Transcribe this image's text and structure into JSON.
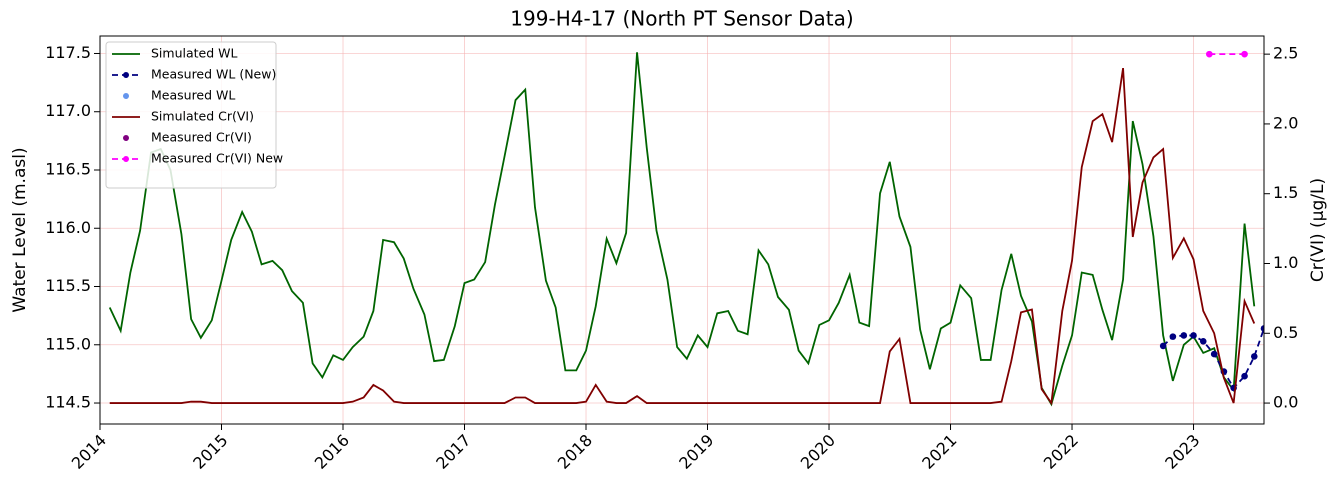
{
  "chart_data": {
    "type": "line",
    "title": "199-H4-17 (North PT Sensor Data)",
    "ylabel": "Water Level (m.asl)",
    "y2label": "Cr(VI) (µg/L)",
    "xlim": [
      2014,
      2023.58
    ],
    "xticks": [
      2014,
      2015,
      2016,
      2017,
      2018,
      2019,
      2020,
      2021,
      2022,
      2023
    ],
    "ylim": [
      114.32,
      117.65
    ],
    "yticks": [
      114.5,
      {
        "value": 115,
        "label": "115.0"
      },
      115.5,
      {
        "value": 116,
        "label": "116.0"
      },
      116.5,
      {
        "value": 117,
        "label": "117.0"
      },
      117.5
    ],
    "y2lim": [
      -0.15,
      2.63
    ],
    "y2ticks": [
      {
        "value": 0,
        "label": "0.0"
      },
      0.5,
      {
        "value": 1,
        "label": "1.0"
      },
      1.5,
      {
        "value": 2,
        "label": "2.0"
      },
      2.5
    ],
    "grid": true,
    "legend": "upper left",
    "series": [
      {
        "name": "Simulated WL",
        "color": "#006400",
        "mode": "lines",
        "axis": "y",
        "x": [
          2014.08,
          2014.17,
          2014.25,
          2014.33,
          2014.42,
          2014.5,
          2014.58,
          2014.67,
          2014.75,
          2014.83,
          2014.92,
          2015.0,
          2015.08,
          2015.17,
          2015.25,
          2015.33,
          2015.42,
          2015.5,
          2015.58,
          2015.67,
          2015.75,
          2015.83,
          2015.92,
          2016.0,
          2016.08,
          2016.17,
          2016.25,
          2016.33,
          2016.42,
          2016.5,
          2016.58,
          2016.67,
          2016.75,
          2016.83,
          2016.92,
          2017.0,
          2017.08,
          2017.17,
          2017.25,
          2017.33,
          2017.42,
          2017.5,
          2017.58,
          2017.67,
          2017.75,
          2017.83,
          2017.92,
          2018.0,
          2018.08,
          2018.17,
          2018.25,
          2018.33,
          2018.42,
          2018.5,
          2018.58,
          2018.67,
          2018.75,
          2018.83,
          2018.92,
          2019.0,
          2019.08,
          2019.17,
          2019.25,
          2019.33,
          2019.42,
          2019.5,
          2019.58,
          2019.67,
          2019.75,
          2019.83,
          2019.92,
          2020.0,
          2020.08,
          2020.17,
          2020.25,
          2020.33,
          2020.42,
          2020.5,
          2020.58,
          2020.67,
          2020.75,
          2020.83,
          2020.92,
          2021.0,
          2021.08,
          2021.17,
          2021.25,
          2021.33,
          2021.42,
          2021.5,
          2021.58,
          2021.67,
          2021.75,
          2021.83,
          2021.92,
          2022.0,
          2022.08,
          2022.17,
          2022.25,
          2022.33,
          2022.42,
          2022.5,
          2022.58,
          2022.67,
          2022.75,
          2022.83,
          2022.92,
          2023.0,
          2023.08,
          2023.17,
          2023.25,
          2023.33,
          2023.42,
          2023.5
        ],
        "values": [
          115.32,
          115.12,
          115.62,
          115.98,
          116.65,
          116.68,
          116.5,
          115.95,
          115.22,
          115.06,
          115.21,
          115.55,
          115.9,
          116.14,
          115.97,
          115.69,
          115.72,
          115.64,
          115.46,
          115.36,
          114.84,
          114.72,
          114.91,
          114.87,
          114.98,
          115.07,
          115.29,
          115.9,
          115.88,
          115.74,
          115.48,
          115.26,
          114.86,
          114.87,
          115.16,
          115.53,
          115.56,
          115.71,
          116.2,
          116.62,
          117.1,
          117.19,
          116.18,
          115.55,
          115.32,
          114.78,
          114.78,
          114.95,
          115.33,
          115.91,
          115.7,
          115.96,
          117.51,
          116.69,
          115.98,
          115.56,
          114.98,
          114.88,
          115.08,
          114.98,
          115.27,
          115.29,
          115.12,
          115.09,
          115.81,
          115.69,
          115.41,
          115.3,
          114.95,
          114.84,
          115.17,
          115.21,
          115.36,
          115.6,
          115.19,
          115.16,
          116.3,
          116.57,
          116.1,
          115.84,
          115.13,
          114.79,
          115.14,
          115.19,
          115.51,
          115.4,
          114.87,
          114.87,
          115.47,
          115.78,
          115.42,
          115.2,
          114.63,
          114.49,
          114.82,
          115.08,
          115.62,
          115.6,
          115.3,
          115.04,
          115.56,
          116.92,
          116.55,
          115.93,
          115.08,
          114.69,
          115.0,
          115.07,
          114.93,
          114.97,
          114.72,
          114.61,
          116.04,
          115.33
        ]
      },
      {
        "name": "Measured WL (New)",
        "color": "#000080",
        "mode": "lines+markers",
        "dash": true,
        "axis": "y",
        "x": [
          2022.75,
          2022.83,
          2022.92,
          2023.0,
          2023.08,
          2023.17,
          2023.25,
          2023.33,
          2023.42,
          2023.5,
          2023.58
        ],
        "values": [
          114.99,
          115.07,
          115.08,
          115.08,
          115.03,
          114.92,
          114.77,
          114.63,
          114.73,
          114.9,
          115.14
        ]
      },
      {
        "name": "Measured WL",
        "color": "#6495ed",
        "mode": "markers",
        "axis": "y",
        "x": [],
        "values": []
      },
      {
        "name": "Simulated Cr(VI)",
        "color": "#800000",
        "mode": "lines",
        "axis": "y2",
        "x": [
          2014.08,
          2014.17,
          2014.25,
          2014.33,
          2014.42,
          2014.5,
          2014.58,
          2014.67,
          2014.75,
          2014.83,
          2014.92,
          2015.0,
          2015.08,
          2015.17,
          2015.25,
          2015.33,
          2015.42,
          2015.5,
          2015.58,
          2015.67,
          2015.75,
          2015.83,
          2015.92,
          2016.0,
          2016.08,
          2016.17,
          2016.25,
          2016.33,
          2016.42,
          2016.5,
          2016.58,
          2016.67,
          2016.75,
          2016.83,
          2016.92,
          2017.0,
          2017.08,
          2017.17,
          2017.25,
          2017.33,
          2017.42,
          2017.5,
          2017.58,
          2017.67,
          2017.75,
          2017.83,
          2017.92,
          2018.0,
          2018.08,
          2018.17,
          2018.25,
          2018.33,
          2018.42,
          2018.5,
          2018.58,
          2018.67,
          2018.75,
          2018.83,
          2018.92,
          2019.0,
          2019.08,
          2019.17,
          2019.25,
          2019.33,
          2019.42,
          2019.5,
          2019.58,
          2019.67,
          2019.75,
          2019.83,
          2019.92,
          2020.0,
          2020.08,
          2020.17,
          2020.25,
          2020.33,
          2020.42,
          2020.5,
          2020.58,
          2020.67,
          2020.75,
          2020.83,
          2020.92,
          2021.0,
          2021.08,
          2021.17,
          2021.25,
          2021.33,
          2021.42,
          2021.5,
          2021.58,
          2021.67,
          2021.75,
          2021.83,
          2021.92,
          2022.0,
          2022.08,
          2022.17,
          2022.25,
          2022.33,
          2022.42,
          2022.5,
          2022.58,
          2022.67,
          2022.75,
          2022.83,
          2022.92,
          2023.0,
          2023.08,
          2023.17,
          2023.25,
          2023.33,
          2023.42,
          2023.5
        ],
        "values": [
          0,
          0,
          0,
          0,
          0,
          0,
          0,
          0,
          0.01,
          0.01,
          0,
          0,
          0,
          0,
          0,
          0,
          0,
          0,
          0,
          0,
          0,
          0,
          0,
          0,
          0.01,
          0.04,
          0.13,
          0.09,
          0.01,
          0,
          0,
          0,
          0,
          0,
          0,
          0,
          0,
          0,
          0,
          0,
          0.04,
          0.04,
          0,
          0,
          0,
          0,
          0,
          0.01,
          0.13,
          0.01,
          0,
          0,
          0.05,
          0,
          0,
          0,
          0,
          0,
          0,
          0,
          0,
          0,
          0,
          0,
          0,
          0,
          0,
          0,
          0,
          0,
          0,
          0,
          0,
          0,
          0,
          0,
          0,
          0.37,
          0.46,
          0,
          0,
          0,
          0,
          0,
          0,
          0,
          0,
          0,
          0.01,
          0.3,
          0.65,
          0.67,
          0.1,
          0,
          0.66,
          1.02,
          1.69,
          2.02,
          2.07,
          1.87,
          2.4,
          1.19,
          1.58,
          1.76,
          1.82,
          1.04,
          1.18,
          1.03,
          0.66,
          0.5,
          0.18,
          0,
          0.73,
          0.57
        ]
      },
      {
        "name": "Measured Cr(VI)",
        "color": "#800080",
        "mode": "markers",
        "axis": "y2",
        "x": [],
        "values": []
      },
      {
        "name": "Measured Cr(VI) New",
        "color": "#ff00ff",
        "mode": "lines+markers",
        "dash": true,
        "axis": "y2",
        "x": [
          2023.13,
          2023.42
        ],
        "values": [
          2.5,
          2.5
        ]
      }
    ]
  }
}
